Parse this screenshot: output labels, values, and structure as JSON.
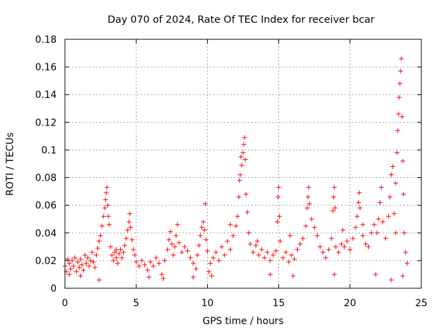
{
  "chart_data": {
    "type": "scatter",
    "title": "Day 070 of 2024, Rate Of TEC Index for receiver bcar",
    "xlabel": "GPS time / hours",
    "ylabel": "ROTI / TECUs",
    "xlim": [
      0,
      25
    ],
    "ylim": [
      0,
      0.18
    ],
    "xticks": [
      0,
      5,
      10,
      15,
      20,
      25
    ],
    "yticks": [
      0,
      0.02,
      0.04,
      0.06,
      0.08,
      0.1,
      0.12,
      0.14,
      0.16,
      0.18
    ],
    "xtick_labels": [
      "0",
      "5",
      "10",
      "15",
      "20",
      "25"
    ],
    "ytick_labels": [
      "0",
      "0.02",
      "0.04",
      "0.06",
      "0.08",
      "0.1",
      "0.12",
      "0.14",
      "0.16",
      "0.18"
    ],
    "grid": true,
    "marker": "+",
    "marker_color": "#ff0000",
    "series": [
      {
        "name": "ROTI",
        "points": [
          [
            0.0,
            0.016
          ],
          [
            0.1,
            0.012
          ],
          [
            0.2,
            0.021
          ],
          [
            0.3,
            0.018
          ],
          [
            0.4,
            0.014
          ],
          [
            0.5,
            0.02
          ],
          [
            0.6,
            0.016
          ],
          [
            0.7,
            0.022
          ],
          [
            0.8,
            0.012
          ],
          [
            0.9,
            0.019
          ],
          [
            1.0,
            0.015
          ],
          [
            1.1,
            0.021
          ],
          [
            1.2,
            0.017
          ],
          [
            1.3,
            0.013
          ],
          [
            1.4,
            0.024
          ],
          [
            1.5,
            0.018
          ],
          [
            1.6,
            0.022
          ],
          [
            1.7,
            0.016
          ],
          [
            1.8,
            0.02
          ],
          [
            1.9,
            0.026
          ],
          [
            2.0,
            0.019
          ],
          [
            2.1,
            0.015
          ],
          [
            2.2,
            0.024
          ],
          [
            2.3,
            0.029
          ],
          [
            2.4,
            0.034
          ],
          [
            2.5,
            0.038
          ],
          [
            2.6,
            0.045
          ],
          [
            2.7,
            0.052
          ],
          [
            2.8,
            0.058
          ],
          [
            2.85,
            0.064
          ],
          [
            2.9,
            0.069
          ],
          [
            2.95,
            0.073
          ],
          [
            3.0,
            0.06
          ],
          [
            3.05,
            0.052
          ],
          [
            3.1,
            0.046
          ],
          [
            3.2,
            0.03
          ],
          [
            3.3,
            0.024
          ],
          [
            3.4,
            0.02
          ],
          [
            3.5,
            0.026
          ],
          [
            3.6,
            0.022
          ],
          [
            3.7,
            0.018
          ],
          [
            3.8,
            0.025
          ],
          [
            3.9,
            0.028
          ],
          [
            4.0,
            0.022
          ],
          [
            4.1,
            0.026
          ],
          [
            4.2,
            0.031
          ],
          [
            4.3,
            0.036
          ],
          [
            4.4,
            0.042
          ],
          [
            4.5,
            0.048
          ],
          [
            4.55,
            0.054
          ],
          [
            4.6,
            0.044
          ],
          [
            4.7,
            0.035
          ],
          [
            4.8,
            0.028
          ],
          [
            4.9,
            0.024
          ],
          [
            5.0,
            0.019
          ],
          [
            5.2,
            0.016
          ],
          [
            5.4,
            0.02
          ],
          [
            5.6,
            0.017
          ],
          [
            5.8,
            0.013
          ],
          [
            6.0,
            0.019
          ],
          [
            6.2,
            0.016
          ],
          [
            6.4,
            0.022
          ],
          [
            6.6,
            0.018
          ],
          [
            6.8,
            0.01
          ],
          [
            7.0,
            0.02
          ],
          [
            7.2,
            0.028
          ],
          [
            7.3,
            0.035
          ],
          [
            7.4,
            0.041
          ],
          [
            7.5,
            0.032
          ],
          [
            7.6,
            0.024
          ],
          [
            7.7,
            0.03
          ],
          [
            7.8,
            0.038
          ],
          [
            7.9,
            0.046
          ],
          [
            8.0,
            0.033
          ],
          [
            8.2,
            0.026
          ],
          [
            8.4,
            0.03
          ],
          [
            8.6,
            0.027
          ],
          [
            8.8,
            0.022
          ],
          [
            9.0,
            0.018
          ],
          [
            9.2,
            0.014
          ],
          [
            9.3,
            0.024
          ],
          [
            9.4,
            0.031
          ],
          [
            9.5,
            0.038
          ],
          [
            9.6,
            0.044
          ],
          [
            9.7,
            0.048
          ],
          [
            9.8,
            0.042
          ],
          [
            9.9,
            0.035
          ],
          [
            10.0,
            0.027
          ],
          [
            10.1,
            0.012
          ],
          [
            10.2,
            0.018
          ],
          [
            9.85,
            0.061
          ],
          [
            10.4,
            0.022
          ],
          [
            10.6,
            0.026
          ],
          [
            10.8,
            0.02
          ],
          [
            11.0,
            0.03
          ],
          [
            11.2,
            0.024
          ],
          [
            11.4,
            0.034
          ],
          [
            11.6,
            0.028
          ],
          [
            11.8,
            0.038
          ],
          [
            12.0,
            0.045
          ],
          [
            12.1,
            0.052
          ],
          [
            12.2,
            0.066
          ],
          [
            12.25,
            0.078
          ],
          [
            12.3,
            0.082
          ],
          [
            12.35,
            0.095
          ],
          [
            12.4,
            0.089
          ],
          [
            12.5,
            0.098
          ],
          [
            12.55,
            0.104
          ],
          [
            12.6,
            0.109
          ],
          [
            12.65,
            0.093
          ],
          [
            12.7,
            0.068
          ],
          [
            12.8,
            0.055
          ],
          [
            12.9,
            0.04
          ],
          [
            13.0,
            0.032
          ],
          [
            13.2,
            0.026
          ],
          [
            13.4,
            0.031
          ],
          [
            13.6,
            0.024
          ],
          [
            13.8,
            0.028
          ],
          [
            14.0,
            0.022
          ],
          [
            14.2,
            0.026
          ],
          [
            14.4,
            0.02
          ],
          [
            14.6,
            0.024
          ],
          [
            14.8,
            0.027
          ],
          [
            14.9,
            0.048
          ],
          [
            14.95,
            0.066
          ],
          [
            15.0,
            0.073
          ],
          [
            15.05,
            0.052
          ],
          [
            15.1,
            0.034
          ],
          [
            15.3,
            0.022
          ],
          [
            15.5,
            0.026
          ],
          [
            15.7,
            0.019
          ],
          [
            15.9,
            0.024
          ],
          [
            16.1,
            0.021
          ],
          [
            16.3,
            0.028
          ],
          [
            16.5,
            0.032
          ],
          [
            16.7,
            0.036
          ],
          [
            16.9,
            0.045
          ],
          [
            17.0,
            0.058
          ],
          [
            17.05,
            0.066
          ],
          [
            17.1,
            0.073
          ],
          [
            17.15,
            0.061
          ],
          [
            17.3,
            0.05
          ],
          [
            17.5,
            0.044
          ],
          [
            17.7,
            0.038
          ],
          [
            17.9,
            0.03
          ],
          [
            18.1,
            0.026
          ],
          [
            18.3,
            0.022
          ],
          [
            18.5,
            0.028
          ],
          [
            18.7,
            0.036
          ],
          [
            18.8,
            0.056
          ],
          [
            18.85,
            0.066
          ],
          [
            18.9,
            0.073
          ],
          [
            18.95,
            0.058
          ],
          [
            19.0,
            0.03
          ],
          [
            19.2,
            0.026
          ],
          [
            19.4,
            0.032
          ],
          [
            19.6,
            0.03
          ],
          [
            19.8,
            0.034
          ],
          [
            20.0,
            0.028
          ],
          [
            20.2,
            0.036
          ],
          [
            20.4,
            0.044
          ],
          [
            20.5,
            0.052
          ],
          [
            20.6,
            0.062
          ],
          [
            20.65,
            0.069
          ],
          [
            20.7,
            0.058
          ],
          [
            20.9,
            0.038
          ],
          [
            21.1,
            0.032
          ],
          [
            21.3,
            0.03
          ],
          [
            21.5,
            0.04
          ],
          [
            21.7,
            0.046
          ],
          [
            21.9,
            0.04
          ],
          [
            22.0,
            0.05
          ],
          [
            22.1,
            0.062
          ],
          [
            22.2,
            0.073
          ],
          [
            22.3,
            0.048
          ],
          [
            22.5,
            0.036
          ],
          [
            22.7,
            0.052
          ],
          [
            22.8,
            0.066
          ],
          [
            22.9,
            0.082
          ],
          [
            23.0,
            0.088
          ],
          [
            23.1,
            0.054
          ],
          [
            23.2,
            0.076
          ],
          [
            23.3,
            0.098
          ],
          [
            23.35,
            0.114
          ],
          [
            23.4,
            0.126
          ],
          [
            23.45,
            0.138
          ],
          [
            23.5,
            0.148
          ],
          [
            23.55,
            0.157
          ],
          [
            23.6,
            0.166
          ],
          [
            23.65,
            0.124
          ],
          [
            23.7,
            0.092
          ],
          [
            23.75,
            0.068
          ],
          [
            23.8,
            0.04
          ],
          [
            23.9,
            0.026
          ],
          [
            24.0,
            0.018
          ],
          [
            0.3,
            0.01
          ],
          [
            1.1,
            0.009
          ],
          [
            2.4,
            0.006
          ],
          [
            5.9,
            0.008
          ],
          [
            6.9,
            0.007
          ],
          [
            9.0,
            0.008
          ],
          [
            10.3,
            0.009
          ],
          [
            14.4,
            0.01
          ],
          [
            16.0,
            0.009
          ],
          [
            18.9,
            0.01
          ],
          [
            21.8,
            0.01
          ],
          [
            22.9,
            0.006
          ],
          [
            23.7,
            0.009
          ],
          [
            3.6,
            0.028
          ],
          [
            11.6,
            0.046
          ],
          [
            13.5,
            0.034
          ],
          [
            15.8,
            0.038
          ],
          [
            19.5,
            0.042
          ],
          [
            20.9,
            0.046
          ],
          [
            23.2,
            0.04
          ]
        ]
      }
    ]
  }
}
